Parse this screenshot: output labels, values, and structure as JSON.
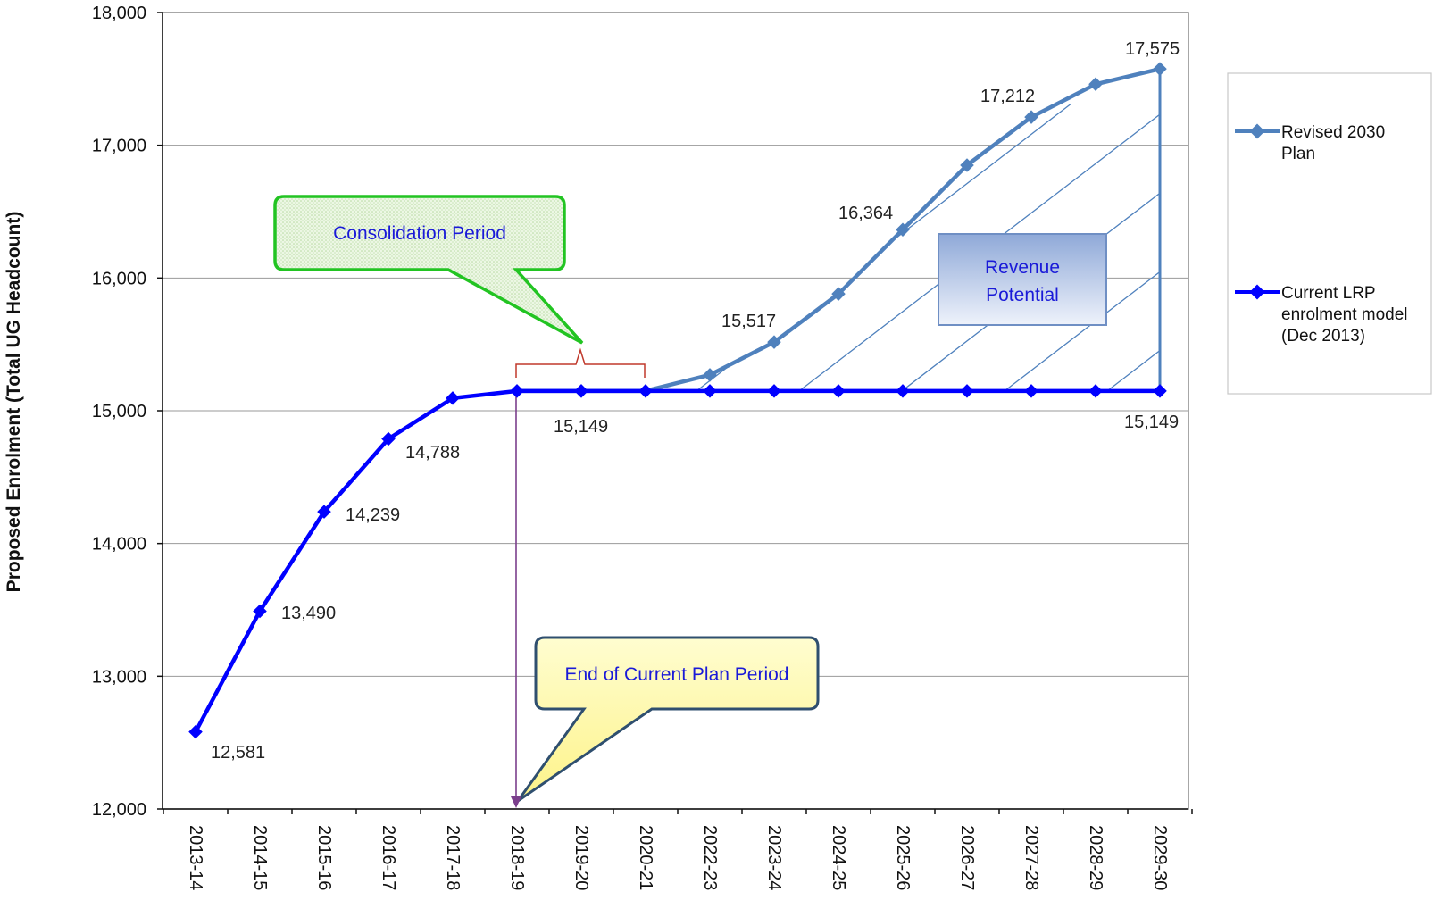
{
  "chart_data": {
    "type": "line",
    "ylabel": "Proposed Enrolment (Total UG  Headcount)",
    "xlabel": "",
    "ylim": [
      12000,
      18000
    ],
    "yticks": [
      "12,000",
      "13,000",
      "14,000",
      "15,000",
      "16,000",
      "17,000",
      "18,000"
    ],
    "categories": [
      "2013-14",
      "2014-15",
      "2015-16",
      "2016-17",
      "2017-18",
      "2018-19",
      "2019-20",
      "2020-21",
      "2022-23",
      "2023-24",
      "2024-25",
      "2025-26",
      "2026-27",
      "2027-28",
      "2028-29",
      "2029-30"
    ],
    "grid": "horizontal",
    "legend_position": "right",
    "series": [
      {
        "name": "Revised 2030 Plan",
        "color": "#4f81bd",
        "values": [
          null,
          null,
          null,
          null,
          null,
          15149,
          15149,
          15149,
          15270,
          15517,
          15880,
          16364,
          16850,
          17212,
          17460,
          17575
        ]
      },
      {
        "name": "Current LRP enrolment model (Dec 2013)",
        "color": "#0000ff",
        "values": [
          12581,
          13490,
          14239,
          14788,
          15095,
          15149,
          15149,
          15149,
          15149,
          15149,
          15149,
          15149,
          15149,
          15149,
          15149,
          15149
        ]
      }
    ],
    "data_labels": [
      {
        "text": "12,581"
      },
      {
        "text": "13,490"
      },
      {
        "text": "14,239"
      },
      {
        "text": "14,788"
      },
      {
        "text": "15,149"
      },
      {
        "text": "15,517"
      },
      {
        "text": "16,364"
      },
      {
        "text": "17,212"
      },
      {
        "text": "17,575"
      },
      {
        "text": "15,149"
      }
    ],
    "annotations": {
      "consolidation": "Consolidation Period",
      "revenue_line1": "Revenue",
      "revenue_line2": "Potential",
      "end_plan": "End of Current Plan Period"
    },
    "legend": {
      "revised_lines": [
        "Revised 2030",
        "Plan"
      ],
      "current_lines": [
        "Current LRP",
        "enrolment model",
        "(Dec 2013)"
      ]
    }
  }
}
